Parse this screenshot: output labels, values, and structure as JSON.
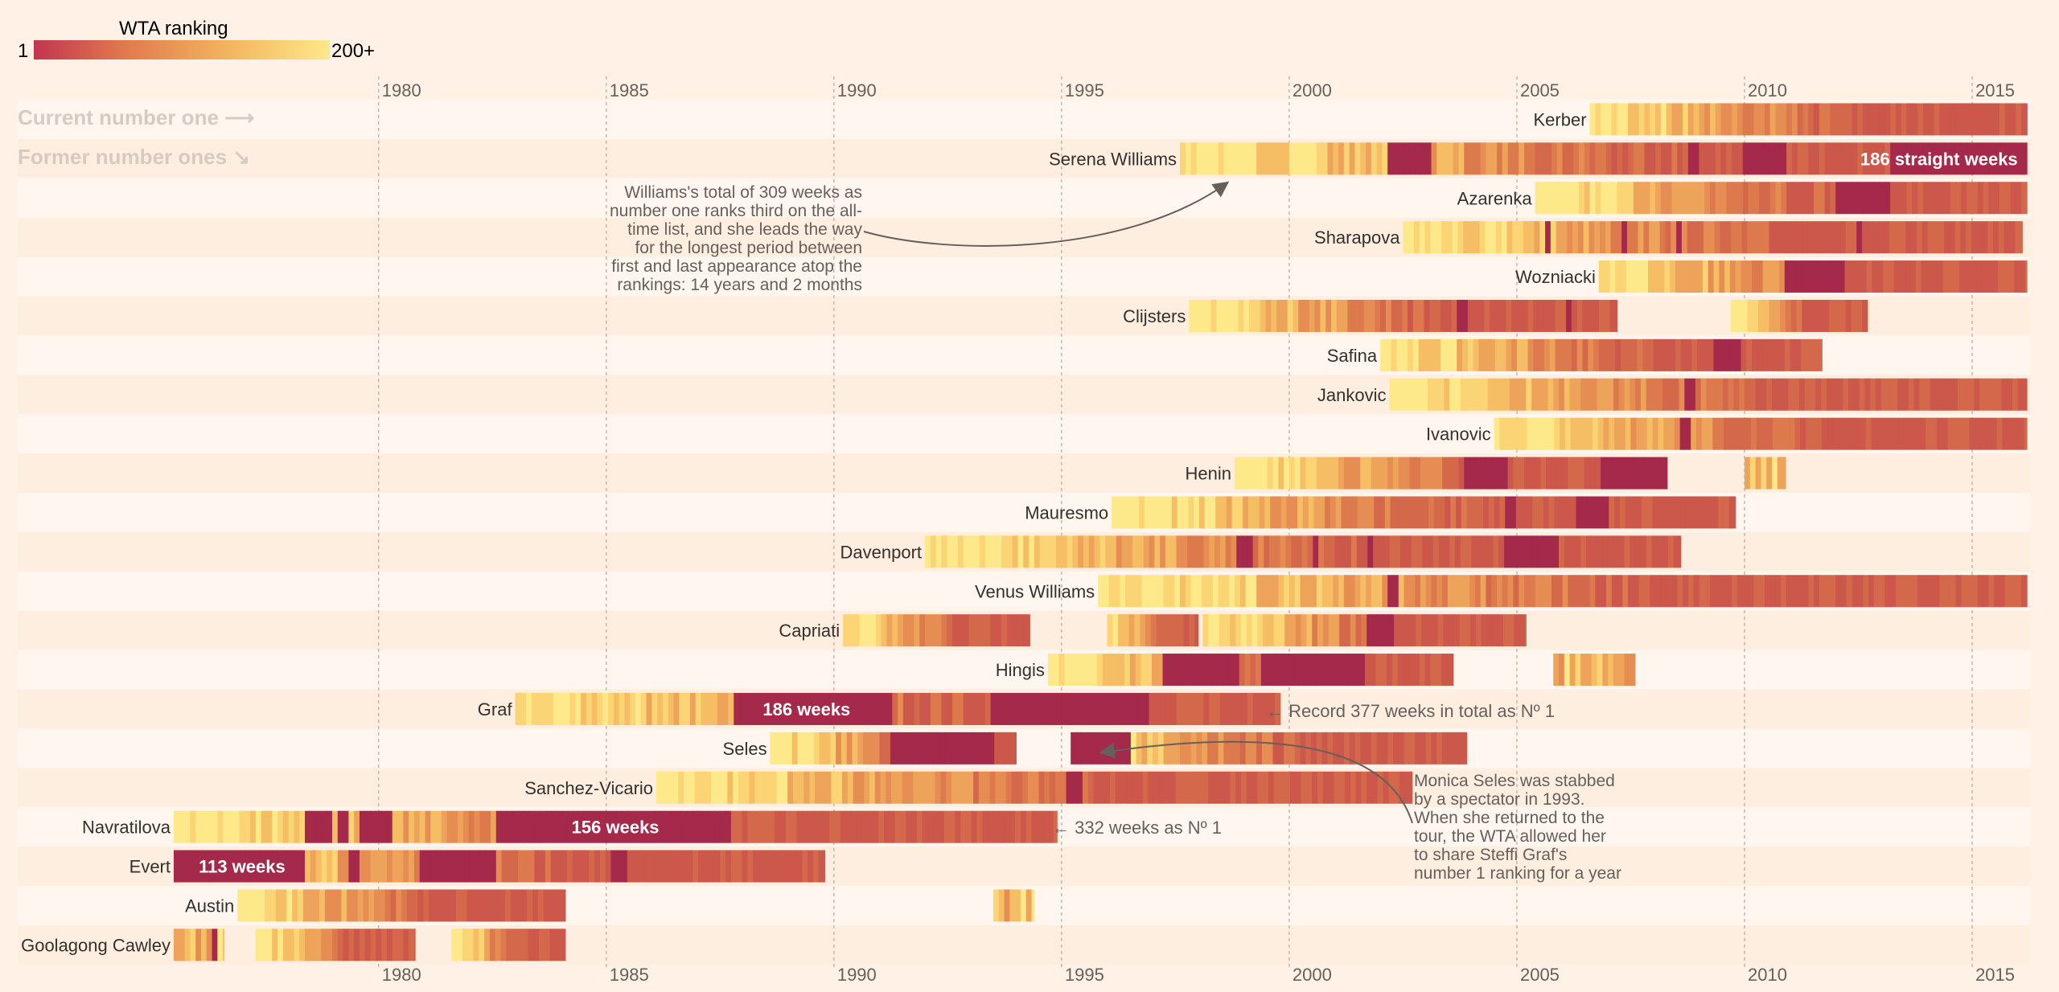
{
  "legend": {
    "title": "WTA ranking",
    "min_label": "1",
    "max_label": "200+",
    "colors": [
      "#c2354f",
      "#e0784e",
      "#f2b45e",
      "#fde88a"
    ]
  },
  "row_labels": {
    "current": "Current number one ⟶",
    "former": "Former number ones ↘"
  },
  "colors": {
    "background": "#fff1e5",
    "row_band_light": "#fff7ef",
    "row_band_dark": "#fdeee0",
    "gridline": "#c4b8aa",
    "annotation": "#66605c",
    "faded_label": "#d6cbc0"
  },
  "annotations": {
    "serena": "Williams's total of 309 weeks as number one ranks third on the all-time list, and she leads the way for the longest period between first and last appearance atop the rankings: 14 years and 2 months",
    "graf": "← Record 377 weeks in total as Nº 1",
    "navratilova": "← 332 weeks as Nº 1",
    "seles": "Monica Seles was stabbed by a spectator in 1993. When she returned to the tour, the WTA allowed her to share Steffi Graf's number 1 ranking for a year"
  },
  "chart_data": {
    "type": "heatmap",
    "x_axis": {
      "range": [
        1975.5,
        2016.2
      ],
      "ticks": [
        1980,
        1985,
        1990,
        1995,
        2000,
        2005,
        2010,
        2015
      ],
      "position": "top and bottom"
    },
    "color_scale": {
      "label": "WTA ranking",
      "min": 1,
      "max": "200+"
    },
    "players": [
      {
        "name": "Kerber",
        "spans": [
          [
            2006.6,
            2016.2
          ]
        ],
        "no1": [
          [
            2016.1,
            2016.2
          ]
        ]
      },
      {
        "name": "Serena Williams",
        "spans": [
          [
            1997.6,
            2016.2
          ]
        ],
        "no1": [
          [
            2002.1,
            2003.1
          ],
          [
            2008.7,
            2008.9
          ],
          [
            2009.9,
            2010.8
          ],
          [
            2013.1,
            2016.2
          ]
        ],
        "label": "186 straight weeks"
      },
      {
        "name": "Azarenka",
        "spans": [
          [
            2005.4,
            2016.2
          ]
        ],
        "no1": [
          [
            2012.0,
            2013.1
          ]
        ]
      },
      {
        "name": "Sharapova",
        "spans": [
          [
            2002.5,
            2016.1
          ]
        ],
        "no1": [
          [
            2005.6,
            2005.7
          ],
          [
            2007.2,
            2007.3
          ],
          [
            2008.4,
            2008.5
          ],
          [
            2012.4,
            2012.5
          ]
        ]
      },
      {
        "name": "Wozniacki",
        "spans": [
          [
            2006.8,
            2016.2
          ]
        ],
        "no1": [
          [
            2010.8,
            2012.1
          ]
        ]
      },
      {
        "name": "Clijsters",
        "spans": [
          [
            1997.8,
            2007.2
          ],
          [
            2009.7,
            2012.7
          ]
        ],
        "no1": [
          [
            2003.6,
            2003.8
          ],
          [
            2006.0,
            2006.1
          ]
        ]
      },
      {
        "name": "Safina",
        "spans": [
          [
            2002.0,
            2011.7
          ]
        ],
        "no1": [
          [
            2009.3,
            2009.8
          ]
        ]
      },
      {
        "name": "Jankovic",
        "spans": [
          [
            2002.2,
            2016.2
          ]
        ],
        "no1": [
          [
            2008.6,
            2008.9
          ]
        ]
      },
      {
        "name": "Ivanovic",
        "spans": [
          [
            2004.5,
            2016.2
          ]
        ],
        "no1": [
          [
            2008.5,
            2008.7
          ]
        ]
      },
      {
        "name": "Henin",
        "spans": [
          [
            1998.8,
            2008.3
          ],
          [
            2010.0,
            2010.9
          ]
        ],
        "no1": [
          [
            2003.8,
            2004.7
          ],
          [
            2006.8,
            2008.3
          ]
        ]
      },
      {
        "name": "Mauresmo",
        "spans": [
          [
            1996.1,
            2009.8
          ]
        ],
        "no1": [
          [
            2004.7,
            2004.9
          ],
          [
            2006.2,
            2006.9
          ]
        ]
      },
      {
        "name": "Davenport",
        "spans": [
          [
            1992.0,
            2008.6
          ]
        ],
        "no1": [
          [
            1998.8,
            1999.1
          ],
          [
            2000.5,
            2000.6
          ],
          [
            2001.7,
            2001.8
          ],
          [
            2004.7,
            2005.8
          ]
        ]
      },
      {
        "name": "Venus Williams",
        "spans": [
          [
            1995.8,
            2016.2
          ]
        ],
        "no1": [
          [
            2002.1,
            2002.3
          ]
        ]
      },
      {
        "name": "Capriati",
        "spans": [
          [
            1990.2,
            1994.3
          ],
          [
            1996.0,
            1998.0
          ],
          [
            1998.1,
            2005.2
          ]
        ],
        "no1": [
          [
            2001.6,
            2002.2
          ]
        ]
      },
      {
        "name": "Hingis",
        "spans": [
          [
            1994.7,
            2003.6
          ],
          [
            2005.8,
            2007.6
          ]
        ],
        "no1": [
          [
            1997.2,
            1998.8
          ],
          [
            1999.3,
            2001.6
          ]
        ]
      },
      {
        "name": "Graf",
        "spans": [
          [
            1983.0,
            1999.8
          ]
        ],
        "no1": [
          [
            1987.7,
            1991.2
          ],
          [
            1993.4,
            1996.8
          ]
        ],
        "label": "186 weeks"
      },
      {
        "name": "Seles",
        "spans": [
          [
            1988.6,
            1994.0
          ],
          [
            1995.2,
            2003.9
          ]
        ],
        "no1": [
          [
            1991.2,
            1993.4
          ],
          [
            1995.2,
            1996.4
          ]
        ]
      },
      {
        "name": "Sanchez-Vicario",
        "spans": [
          [
            1986.1,
            2002.7
          ]
        ],
        "no1": [
          [
            1995.1,
            1995.4
          ]
        ]
      },
      {
        "name": "Navratilova",
        "spans": [
          [
            1975.5,
            1994.9
          ]
        ],
        "no1": [
          [
            1978.3,
            1978.9
          ],
          [
            1979.0,
            1979.3
          ],
          [
            1979.5,
            1980.2
          ],
          [
            1982.5,
            1987.7
          ]
        ],
        "label": "156 weeks"
      },
      {
        "name": "Evert",
        "spans": [
          [
            1975.5,
            1989.8
          ]
        ],
        "no1": [
          [
            1975.5,
            1978.3
          ],
          [
            1979.3,
            1979.5
          ],
          [
            1980.8,
            1982.5
          ],
          [
            1985.0,
            1985.4
          ]
        ],
        "label": "113 weeks"
      },
      {
        "name": "Austin",
        "spans": [
          [
            1976.9,
            1984.1
          ],
          [
            1993.5,
            1994.4
          ]
        ],
        "no1": [
          [
            1980.3,
            1980.35
          ]
        ]
      },
      {
        "name": "Goolagong Cawley",
        "spans": [
          [
            1975.5,
            1976.6
          ],
          [
            1977.3,
            1980.8
          ],
          [
            1981.6,
            1984.1
          ]
        ],
        "no1": [
          [
            1976.3,
            1976.4
          ]
        ]
      }
    ]
  }
}
